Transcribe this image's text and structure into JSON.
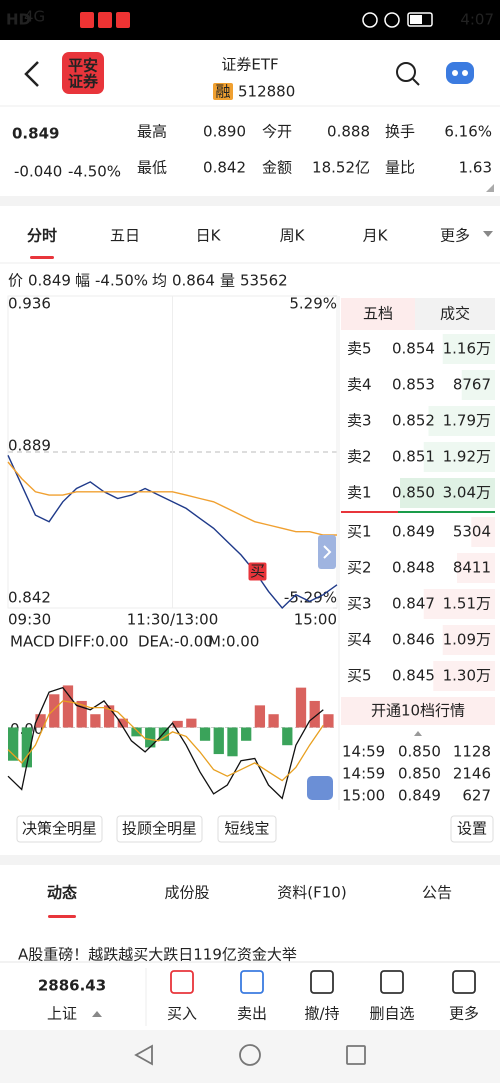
{
  "status_bar": {
    "hd": "HD",
    "network": "4G",
    "time": "4:07"
  },
  "header": {
    "logo": [
      "平安",
      "证券"
    ],
    "title": "证券ETF",
    "badge": "融",
    "code": "512880"
  },
  "quote": {
    "price": 0.849,
    "change": "-0.040",
    "change_pct": "-4.50%",
    "stats": [
      {
        "label": "最高",
        "value": "0.890"
      },
      {
        "label": "今开",
        "value": "0.888"
      },
      {
        "label": "换手",
        "value": "6.16%"
      },
      {
        "label": "最低",
        "value": "0.842"
      },
      {
        "label": "金额",
        "value": "18.52亿"
      },
      {
        "label": "量比",
        "value": "1.63"
      }
    ]
  },
  "period_tabs": [
    "分时",
    "五日",
    "日K",
    "周K",
    "月K",
    "更多"
  ],
  "chart_info": [
    {
      "label": "价",
      "value": "0.849"
    },
    {
      "label": "幅",
      "value": "-4.50%"
    },
    {
      "label": "均",
      "value": "0.864"
    },
    {
      "label": "量",
      "value": "53562"
    }
  ],
  "chart_data": [
    {
      "type": "line",
      "x": [
        0,
        10,
        20,
        30,
        40,
        50,
        60,
        70,
        80,
        90,
        100,
        110,
        120,
        130,
        140,
        150,
        160,
        170,
        180,
        190,
        200,
        210,
        220,
        230,
        240
      ],
      "series": [
        {
          "color": "#1f3a8a",
          "values": [
            0.888,
            0.879,
            0.87,
            0.868,
            0.874,
            0.878,
            0.88,
            0.877,
            0.875,
            0.876,
            0.878,
            0.876,
            0.874,
            0.872,
            0.869,
            0.866,
            0.862,
            0.858,
            0.853,
            0.847,
            0.842,
            0.846,
            0.844,
            0.846,
            0.849
          ]
        },
        {
          "color": "#f0a030",
          "values": [
            0.886,
            0.881,
            0.877,
            0.876,
            0.876,
            0.877,
            0.877,
            0.877,
            0.877,
            0.877,
            0.877,
            0.877,
            0.877,
            0.876,
            0.875,
            0.874,
            0.872,
            0.87,
            0.868,
            0.867,
            0.866,
            0.865,
            0.865,
            0.864,
            0.864
          ]
        }
      ],
      "xlim": [
        0,
        240
      ],
      "xticks": [
        {
          "value": 0,
          "label": "09:30"
        },
        {
          "value": 120,
          "label": "11:30/13:00"
        },
        {
          "value": 240,
          "label": "15:00"
        }
      ],
      "ylim": [
        0.842,
        0.936
      ],
      "yticks": [
        0.936,
        0.889,
        0.842
      ],
      "y2lim": [
        -5.29,
        5.29
      ],
      "y2ticks": [
        {
          "value": 5.29,
          "label": "5.29%"
        },
        {
          "value": -5.29,
          "label": "-5.29%"
        }
      ],
      "grid": true,
      "annotations": [
        {
          "text": "买",
          "x": 182,
          "y": 0.853
        }
      ]
    },
    {
      "type": "macd",
      "title": "MACD",
      "indicators": [
        {
          "text": "DIFF:0.00",
          "color": "#222222"
        },
        {
          "text": "DEA:-0.00",
          "color": "#e8a020"
        },
        {
          "text": "M:0.00",
          "color": "#b03a9a"
        }
      ],
      "x": [
        0,
        10,
        20,
        30,
        40,
        50,
        60,
        70,
        80,
        90,
        100,
        110,
        120,
        130,
        140,
        150,
        160,
        170,
        180,
        190,
        200,
        210,
        220,
        230
      ],
      "xlim": [
        0,
        240
      ],
      "ylim": [
        -0.0035,
        0.0035
      ],
      "yticks": [
        {
          "value": 0,
          "label": "0.00"
        }
      ],
      "bars": {
        "up_color": "#d9625e",
        "down_color": "#3aa35a",
        "values": [
          -0.0015,
          -0.0018,
          0.0006,
          0.0015,
          0.0019,
          0.0012,
          0.0006,
          0.001,
          0.0004,
          -0.0004,
          -0.0009,
          -0.0006,
          0.0003,
          0.0004,
          -0.0006,
          -0.0012,
          -0.0013,
          -0.0006,
          0.001,
          0.0006,
          -0.0008,
          0.0018,
          0.0012,
          0.0006
        ]
      },
      "series": [
        {
          "color": "#111111",
          "values": [
            -0.0022,
            -0.0028,
            0.0002,
            0.0016,
            0.0018,
            0.001,
            0.0008,
            0.0012,
            0.0004,
            -0.0006,
            -0.0011,
            -0.0005,
            0.0002,
            -0.0008,
            -0.002,
            -0.003,
            -0.0026,
            -0.0015,
            -0.0014,
            -0.0026,
            -0.0032,
            -0.0008,
            0.0003,
            0.0008
          ]
        },
        {
          "color": "#e8a020",
          "values": [
            -0.001,
            -0.0016,
            -0.0008,
            0.0006,
            0.0012,
            0.0011,
            0.0009,
            0.0009,
            0.0007,
            0.0001,
            -0.0005,
            -0.0006,
            -0.0002,
            -0.0004,
            -0.0011,
            -0.0019,
            -0.0022,
            -0.0019,
            -0.0016,
            -0.002,
            -0.0024,
            -0.0018,
            -0.0008,
            0.0001
          ]
        }
      ]
    }
  ],
  "order_book": {
    "tabs": [
      "五档",
      "成交"
    ],
    "asks": [
      {
        "label": "卖5",
        "price": "0.854",
        "volume": "1.16万"
      },
      {
        "label": "卖4",
        "price": "0.853",
        "volume": "8767"
      },
      {
        "label": "卖3",
        "price": "0.852",
        "volume": "1.79万"
      },
      {
        "label": "卖2",
        "price": "0.851",
        "volume": "1.92万"
      },
      {
        "label": "卖1",
        "price": "0.850",
        "volume": "3.04万"
      }
    ],
    "bids": [
      {
        "label": "买1",
        "price": "0.849",
        "volume": "5304"
      },
      {
        "label": "买2",
        "price": "0.848",
        "volume": "8411"
      },
      {
        "label": "买3",
        "price": "0.847",
        "volume": "1.51万"
      },
      {
        "label": "买4",
        "price": "0.846",
        "volume": "1.09万"
      },
      {
        "label": "买5",
        "price": "0.845",
        "volume": "1.30万"
      }
    ],
    "upgrade": "开通10档行情"
  },
  "trades": [
    {
      "time": "14:59",
      "price": "0.850",
      "volume": "1128"
    },
    {
      "time": "14:59",
      "price": "0.850",
      "volume": "2146"
    },
    {
      "time": "15:00",
      "price": "0.849",
      "volume": "627"
    }
  ],
  "tools": [
    "决策全明星",
    "投顾全明星",
    "短线宝"
  ],
  "settings": "设置",
  "info_tabs": [
    "动态",
    "成份股",
    "资料(F10)",
    "公告"
  ],
  "news": "A股重磅！越跌越买大跌日119亿资金大举",
  "bottom_bar": {
    "index_value": "2886.43",
    "index_name": "上证",
    "actions": [
      "买入",
      "卖出",
      "撤/持",
      "删自选",
      "更多"
    ]
  }
}
